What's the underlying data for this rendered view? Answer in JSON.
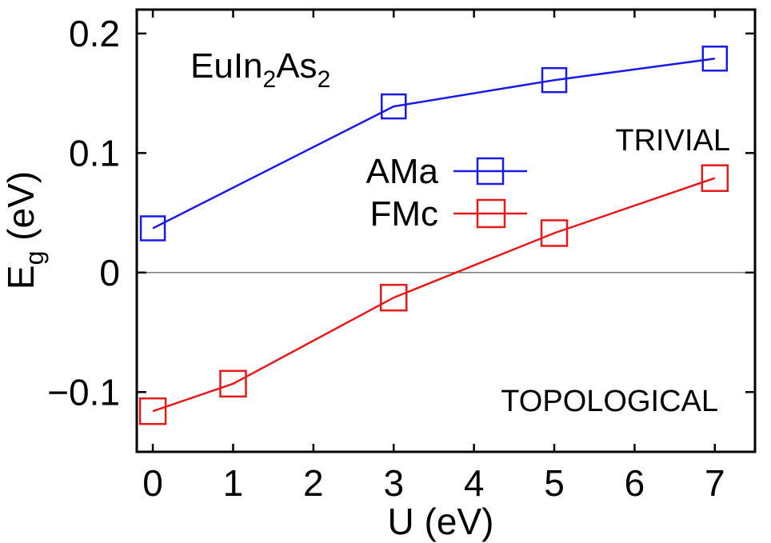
{
  "chart_data": {
    "type": "line",
    "title": "",
    "material_label": {
      "prefix": "EuIn",
      "sub1": "2",
      "mid": "As",
      "sub2": "2"
    },
    "xlabel": "U (eV)",
    "ylabel": {
      "main": "E",
      "sub": "g",
      "unit": " (eV)"
    },
    "xlim": [
      -0.2,
      7.5
    ],
    "ylim": [
      -0.15,
      0.22
    ],
    "xticks": [
      0,
      1,
      2,
      3,
      4,
      5,
      6,
      7
    ],
    "yticks": [
      {
        "value": -0.1,
        "label": "−0.1"
      },
      {
        "value": 0,
        "label": "0"
      },
      {
        "value": 0.1,
        "label": "0.1"
      },
      {
        "value": 0.2,
        "label": "0.2"
      }
    ],
    "zero_line": true,
    "legend_position": "center",
    "annotations": {
      "upper_region": "TRIVIAL",
      "lower_region": "TOPOLOGICAL"
    },
    "series": [
      {
        "name": "AMa",
        "color": "#1a1ae6",
        "marker": "open-square-small",
        "x": [
          0,
          3,
          5,
          7
        ],
        "y": [
          0.037,
          0.139,
          0.161,
          0.179
        ]
      },
      {
        "name": "FMc",
        "color": "#e61a1a",
        "marker": "open-square-large",
        "x": [
          0,
          1,
          3,
          5,
          7
        ],
        "y": [
          -0.116,
          -0.093,
          -0.021,
          0.033,
          0.079
        ]
      }
    ]
  }
}
